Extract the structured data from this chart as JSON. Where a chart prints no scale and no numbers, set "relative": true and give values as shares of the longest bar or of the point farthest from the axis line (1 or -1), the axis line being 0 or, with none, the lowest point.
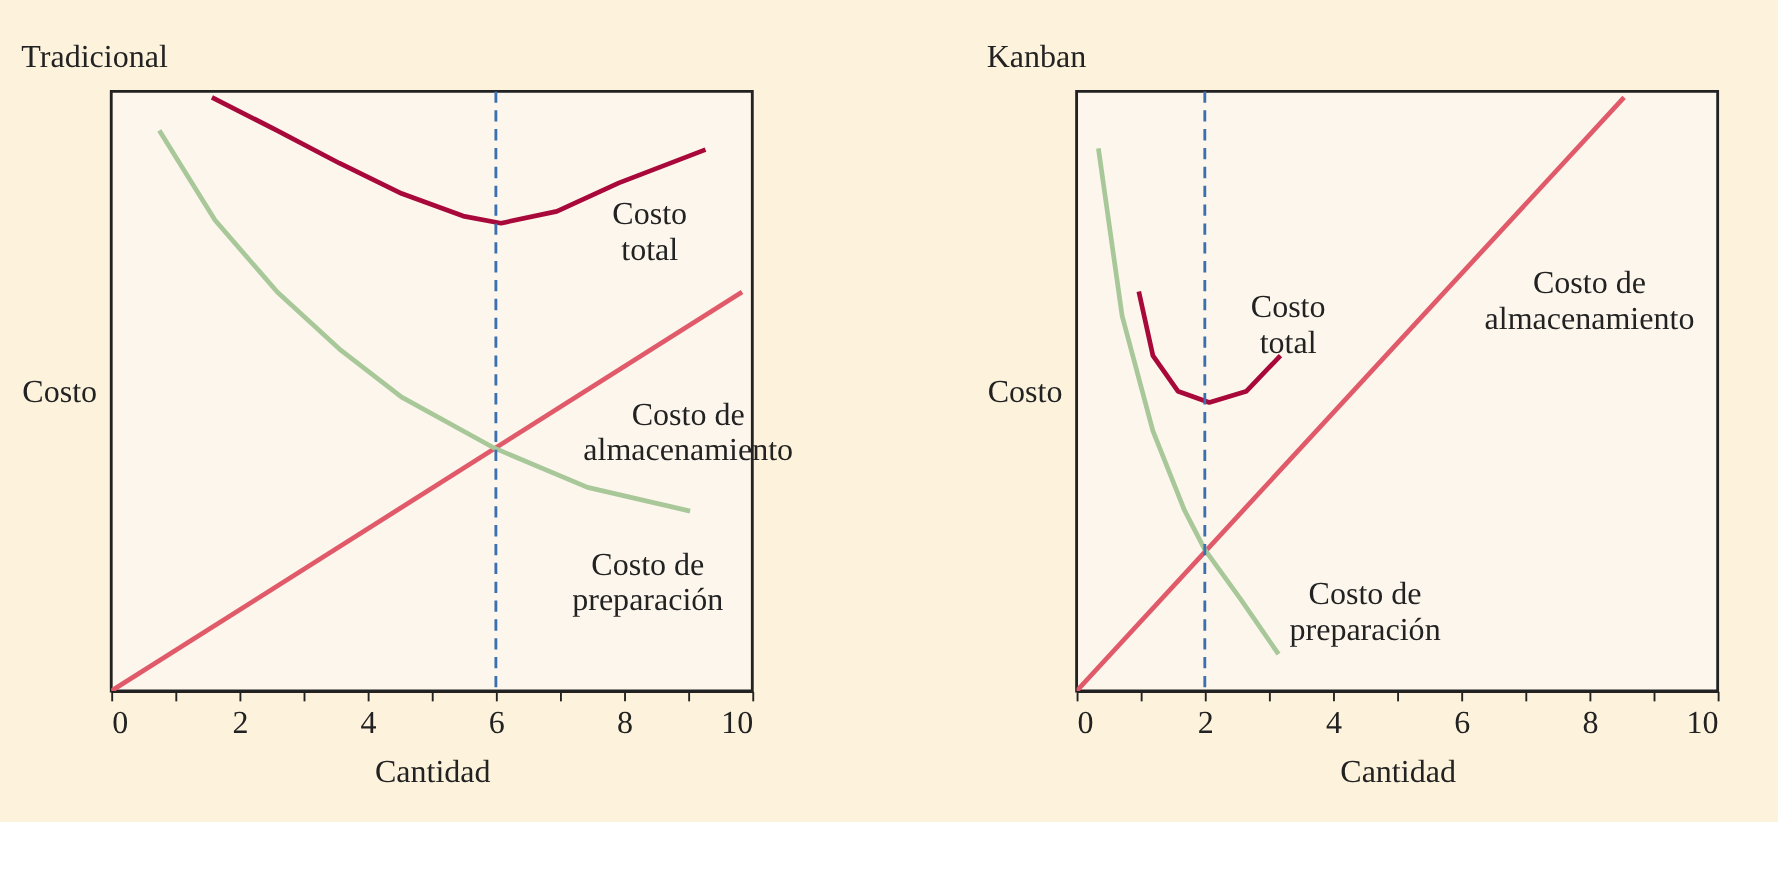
{
  "chart_data": [
    {
      "type": "line",
      "title": "Tradicional",
      "xlabel": "Cantidad",
      "ylabel": "Costo",
      "relative": true,
      "xlim": [
        0,
        10
      ],
      "xticks": [
        0,
        {
          "value": 1,
          "label": null
        },
        2,
        {
          "value": 3,
          "label": null
        },
        4,
        {
          "value": 5,
          "label": null
        },
        6,
        {
          "value": 7,
          "label": null
        },
        8,
        {
          "value": 9,
          "label": null
        },
        10
      ],
      "series": [
        {
          "name": "Costo total",
          "color": "#a8093a",
          "x": [
            1.57,
            2.59,
            3.56,
            4.53,
            5.49,
            6.08,
            6.95,
            7.92,
            9.27
          ],
          "values": [
            1.0,
            0.944,
            0.889,
            0.838,
            0.8,
            0.788,
            0.808,
            0.856,
            0.912
          ]
        },
        {
          "name": "Costo de almacenamiento",
          "color": "#e05a6a",
          "x": [
            0,
            9.84
          ],
          "values": [
            0,
            0.672
          ]
        },
        {
          "name": "Costo de preparación",
          "color": "#a8c89a",
          "x": [
            0.75,
            1.62,
            2.59,
            3.56,
            4.53,
            5.98,
            7.43,
            9.03
          ],
          "values": [
            0.944,
            0.793,
            0.672,
            0.576,
            0.495,
            0.409,
            0.343,
            0.303
          ]
        }
      ],
      "ref_lines": [
        {
          "axis": "x",
          "value": 6,
          "color": "#3a6fb0",
          "line_style": "dashed"
        }
      ]
    },
    {
      "type": "line",
      "title": "Kanban",
      "xlabel": "Cantidad",
      "ylabel": "Costo",
      "relative": true,
      "xlim": [
        0,
        10
      ],
      "xticks": [
        0,
        {
          "value": 1,
          "label": null
        },
        2,
        {
          "value": 3,
          "label": null
        },
        4,
        {
          "value": 5,
          "label": null
        },
        6,
        {
          "value": 7,
          "label": null
        },
        8,
        {
          "value": 9,
          "label": null
        },
        10
      ],
      "series": [
        {
          "name": "Costo total",
          "color": "#a8093a",
          "x": [
            0.97,
            1.19,
            1.58,
            2.07,
            2.65,
            3.18
          ],
          "values": [
            0.673,
            0.565,
            0.505,
            0.486,
            0.505,
            0.565
          ]
        },
        {
          "name": "Costo de almacenamiento",
          "color": "#e05a6a",
          "x": [
            0,
            8.54
          ],
          "values": [
            0,
            1.0
          ]
        },
        {
          "name": "Costo de preparación",
          "color": "#a8c89a",
          "x": [
            0.34,
            0.71,
            1.19,
            1.68,
            2.0,
            2.55,
            3.15
          ],
          "values": [
            0.914,
            0.632,
            0.438,
            0.305,
            0.238,
            0.156,
            0.062
          ]
        }
      ],
      "ref_lines": [
        {
          "axis": "x",
          "value": 2,
          "color": "#3a6fb0",
          "line_style": "dashed"
        }
      ]
    }
  ]
}
